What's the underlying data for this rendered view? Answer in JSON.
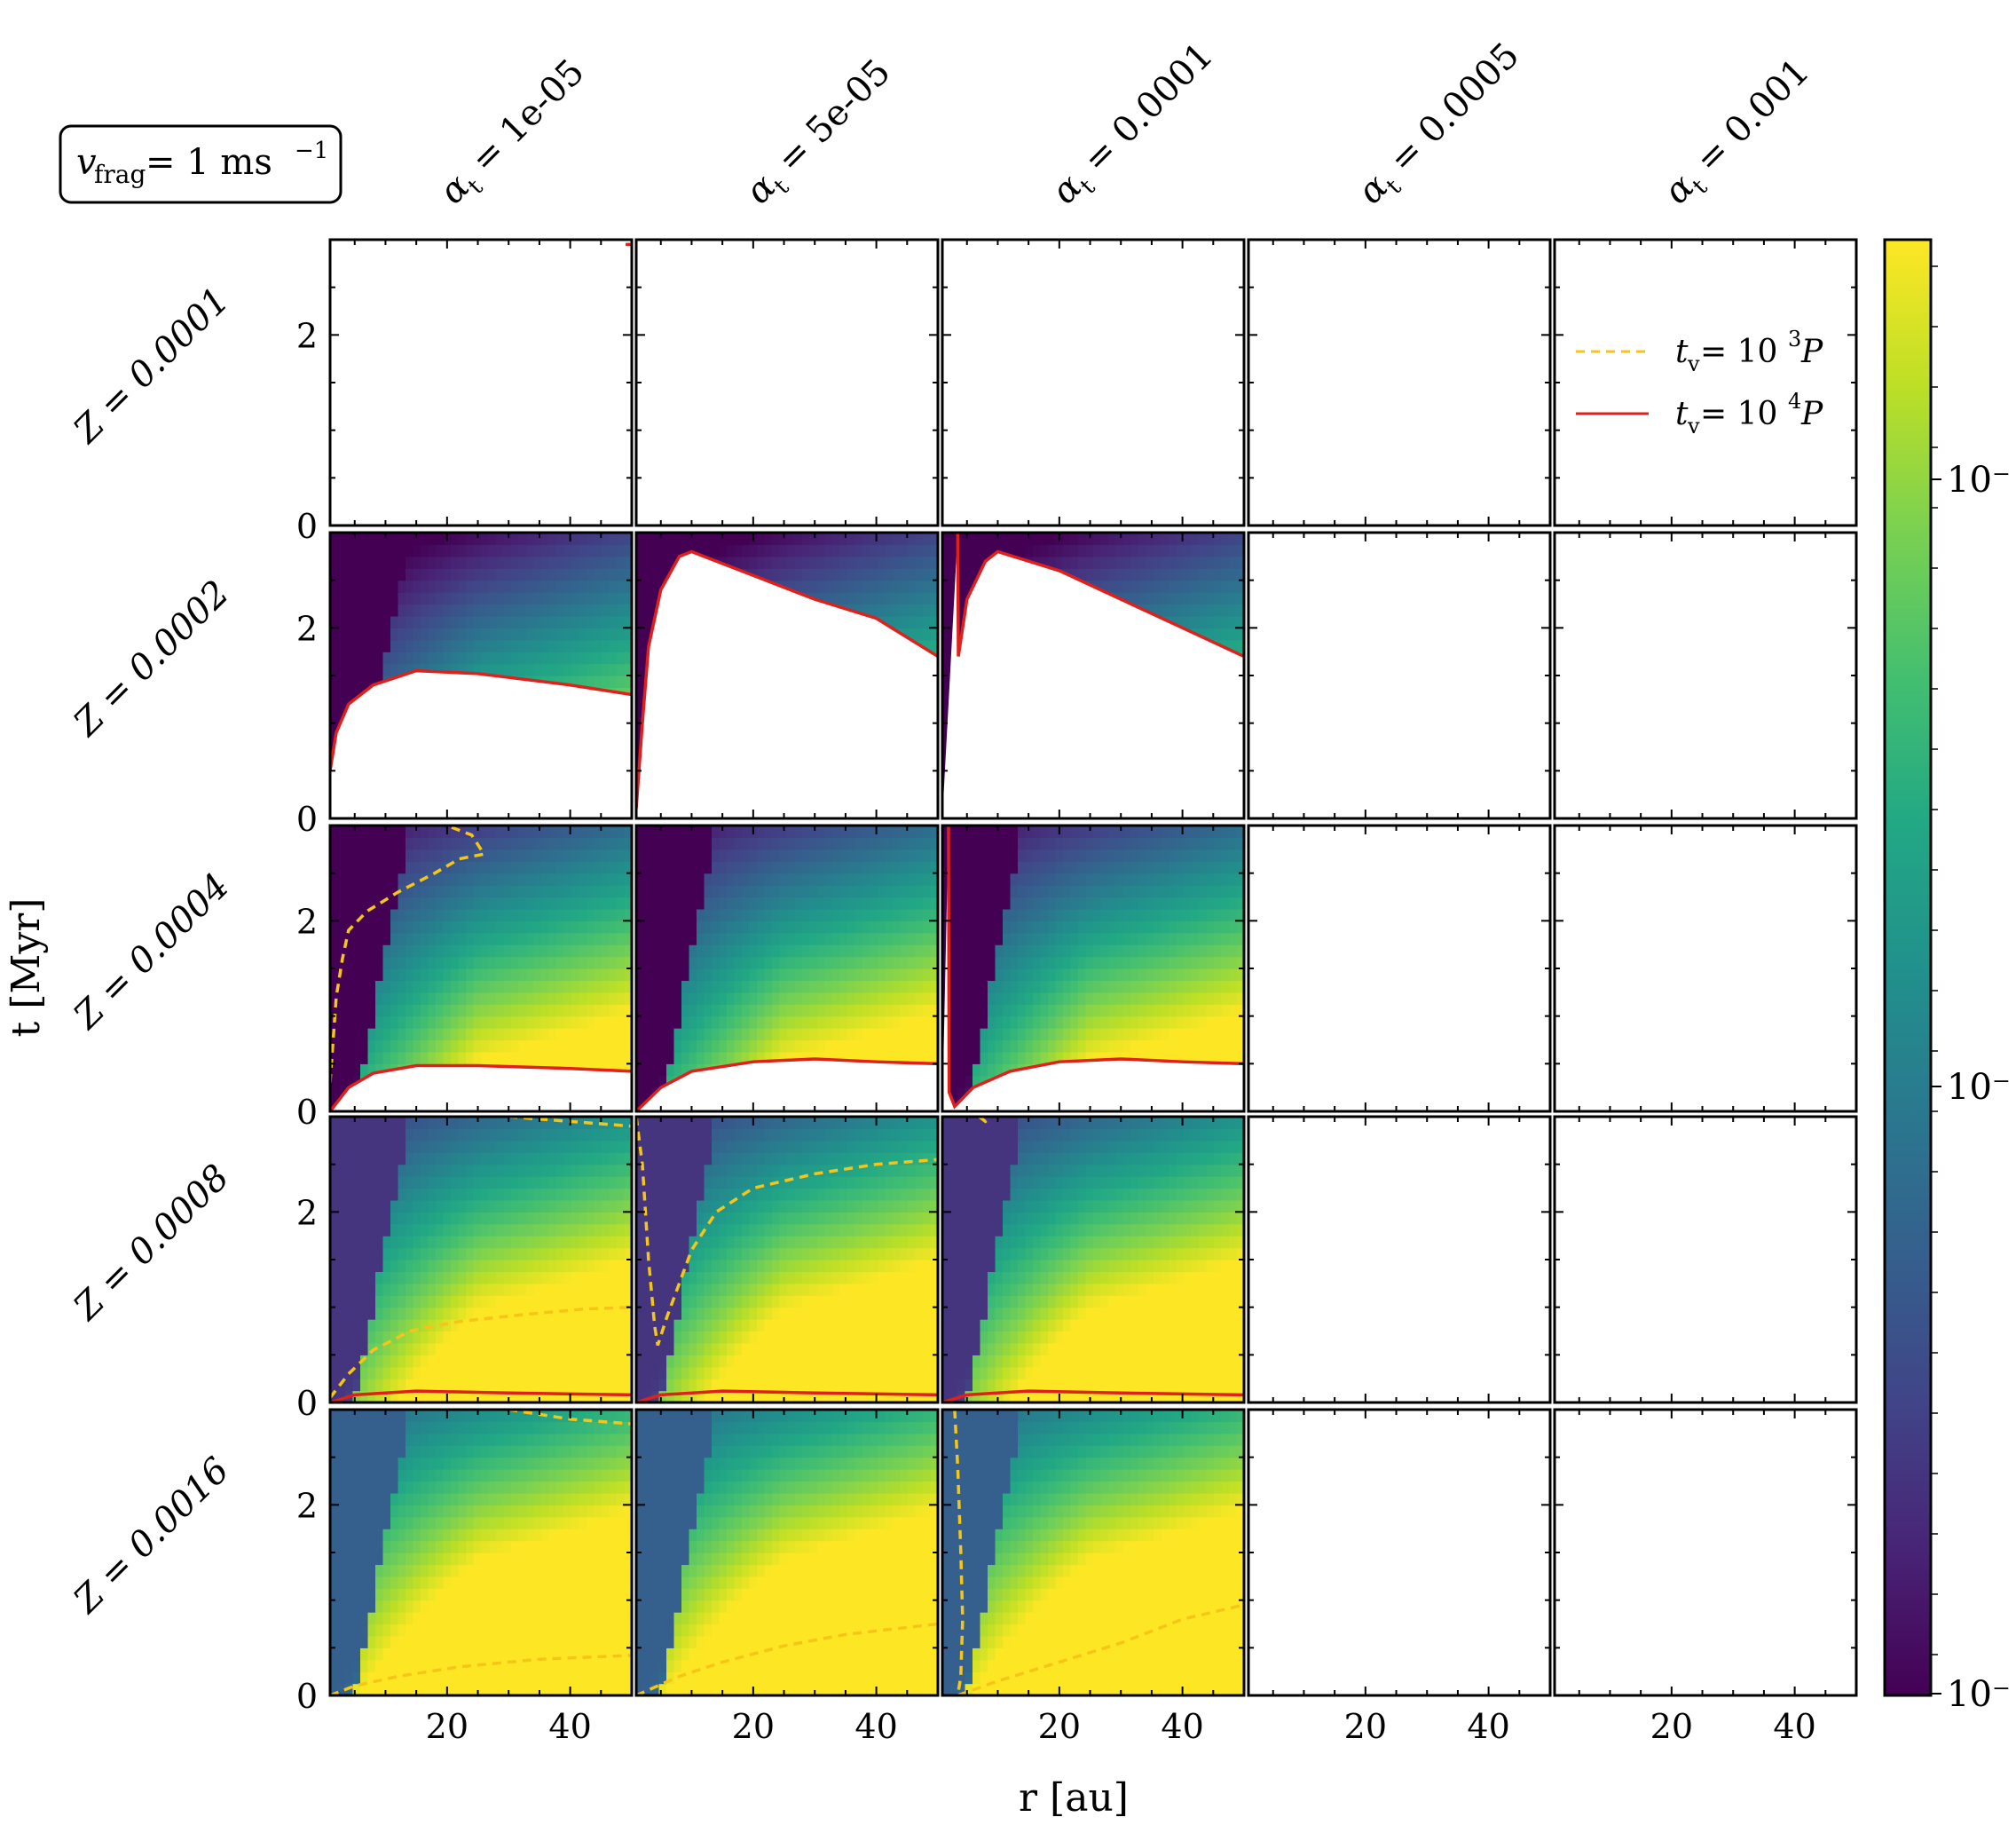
{
  "figure": {
    "badge": {
      "text": "v",
      "sub": "frag",
      "mid": " = 1 ms",
      "sup": "−1"
    },
    "column_labels": [
      {
        "sym": "α",
        "sub": "t",
        "val": " = 1e-05"
      },
      {
        "sym": "α",
        "sub": "t",
        "val": " = 5e-05"
      },
      {
        "sym": "α",
        "sub": "t",
        "val": " = 0.0001"
      },
      {
        "sym": "α",
        "sub": "t",
        "val": " = 0.0005"
      },
      {
        "sym": "α",
        "sub": "t",
        "val": " = 0.001"
      }
    ],
    "row_labels": [
      "Z = 0.0001",
      "Z = 0.0002",
      "Z = 0.0004",
      "Z = 0.0008",
      "Z = 0.0016"
    ],
    "xlabel": "r [au]",
    "ylabel": "t [Myr]",
    "x_ticks": [
      "20",
      "40"
    ],
    "y_ticks": [
      "0",
      "2"
    ],
    "colorbar_ticks": [
      "10⁻",
      "10⁻",
      "10⁻"
    ],
    "legend": [
      {
        "label_t": "t",
        "label_sub": "v",
        "label_rest": " = 10",
        "label_sup": "3",
        "label_end": "P",
        "color": "#f5c518",
        "style": "dashed"
      },
      {
        "label_t": "t",
        "label_sub": "v",
        "label_rest": " = 10",
        "label_sup": "4",
        "label_end": "P",
        "color": "#e0201b",
        "style": "solid"
      }
    ],
    "colors": {
      "yellow_line": "#f5c518",
      "red_line": "#e0201b"
    }
  },
  "chart_data": {
    "type": "heatmap",
    "colormap": "viridis",
    "colorscale": "log",
    "xlabel": "r [au]",
    "ylabel": "t [Myr]",
    "xlim": [
      1,
      50
    ],
    "ylim": [
      0,
      3
    ],
    "panels": [
      {
        "row": 0,
        "col": 0,
        "filled": false,
        "red": [
          [
            49,
            2.95
          ],
          [
            50,
            2.95
          ]
        ],
        "yellow": []
      },
      {
        "row": 0,
        "col": 1,
        "filled": false,
        "red": [],
        "yellow": []
      },
      {
        "row": 0,
        "col": 2,
        "filled": false,
        "red": [],
        "yellow": []
      },
      {
        "row": 0,
        "col": 3,
        "filled": false,
        "red": [],
        "yellow": []
      },
      {
        "row": 0,
        "col": 4,
        "filled": false,
        "red": [],
        "yellow": []
      },
      {
        "row": 1,
        "col": 0,
        "filled": true,
        "mask_below_red": true,
        "red": [
          [
            1,
            0.5
          ],
          [
            2,
            0.9
          ],
          [
            4,
            1.2
          ],
          [
            8,
            1.4
          ],
          [
            15,
            1.55
          ],
          [
            25,
            1.52
          ],
          [
            40,
            1.4
          ],
          [
            50,
            1.3
          ]
        ],
        "yellow": []
      },
      {
        "row": 1,
        "col": 1,
        "filled": true,
        "mask_below_red": true,
        "red": [
          [
            1,
            0.1
          ],
          [
            2,
            1.0
          ],
          [
            3,
            1.8
          ],
          [
            5,
            2.4
          ],
          [
            8,
            2.75
          ],
          [
            10,
            2.8
          ],
          [
            20,
            2.55
          ],
          [
            30,
            2.3
          ],
          [
            40,
            2.1
          ],
          [
            50,
            1.7
          ]
        ],
        "yellow": []
      },
      {
        "row": 1,
        "col": 2,
        "filled": true,
        "mask_below_red": true,
        "red_vertical_x": 3.5,
        "red": [
          [
            3.5,
            3.0
          ],
          [
            3.6,
            1.7
          ],
          [
            5,
            2.3
          ],
          [
            8,
            2.7
          ],
          [
            10,
            2.8
          ],
          [
            20,
            2.6
          ],
          [
            30,
            2.3
          ],
          [
            40,
            2.0
          ],
          [
            50,
            1.7
          ]
        ],
        "yellow": []
      },
      {
        "row": 1,
        "col": 3,
        "filled": false,
        "red": [],
        "yellow": []
      },
      {
        "row": 1,
        "col": 4,
        "filled": false,
        "red": [],
        "yellow": []
      },
      {
        "row": 2,
        "col": 0,
        "filled": true,
        "mask_below_red": true,
        "red": [
          [
            1,
            0.0
          ],
          [
            4,
            0.25
          ],
          [
            8,
            0.4
          ],
          [
            15,
            0.48
          ],
          [
            25,
            0.48
          ],
          [
            40,
            0.45
          ],
          [
            50,
            0.42
          ]
        ],
        "yellow": [
          [
            1,
            0.3
          ],
          [
            2,
            1.2
          ],
          [
            3,
            1.6
          ],
          [
            4,
            1.9
          ],
          [
            7,
            2.1
          ],
          [
            12,
            2.3
          ],
          [
            18,
            2.5
          ],
          [
            22,
            2.65
          ],
          [
            26,
            2.7
          ],
          [
            24,
            2.9
          ],
          [
            20,
            3.0
          ]
        ]
      },
      {
        "row": 2,
        "col": 1,
        "filled": true,
        "mask_below_red": true,
        "red": [
          [
            1,
            0.0
          ],
          [
            5,
            0.25
          ],
          [
            10,
            0.42
          ],
          [
            20,
            0.52
          ],
          [
            30,
            0.55
          ],
          [
            40,
            0.52
          ],
          [
            50,
            0.5
          ]
        ],
        "yellow": []
      },
      {
        "row": 2,
        "col": 2,
        "filled": true,
        "mask_below_red": true,
        "red_vertical_x": 2,
        "red": [
          [
            2,
            3.0
          ],
          [
            2.1,
            0.2
          ],
          [
            3,
            0.05
          ],
          [
            6,
            0.25
          ],
          [
            12,
            0.42
          ],
          [
            20,
            0.52
          ],
          [
            30,
            0.55
          ],
          [
            40,
            0.52
          ],
          [
            50,
            0.5
          ]
        ],
        "yellow": []
      },
      {
        "row": 2,
        "col": 3,
        "filled": false,
        "red": [],
        "yellow": []
      },
      {
        "row": 2,
        "col": 4,
        "filled": false,
        "red": [],
        "yellow": []
      },
      {
        "row": 3,
        "col": 0,
        "filled": true,
        "mask_below_red": false,
        "red": [
          [
            1,
            0.0
          ],
          [
            5,
            0.08
          ],
          [
            15,
            0.12
          ],
          [
            30,
            0.1
          ],
          [
            50,
            0.08
          ]
        ],
        "yellow": [
          [
            1,
            0.05
          ],
          [
            4,
            0.3
          ],
          [
            8,
            0.55
          ],
          [
            14,
            0.75
          ],
          [
            22,
            0.85
          ],
          [
            32,
            0.92
          ],
          [
            42,
            0.98
          ],
          [
            50,
            1.0
          ],
          [
            30,
            3.0
          ],
          [
            40,
            2.95
          ],
          [
            50,
            2.9
          ]
        ]
      },
      {
        "row": 3,
        "col": 1,
        "filled": true,
        "mask_below_red": false,
        "red": [
          [
            1,
            0.0
          ],
          [
            5,
            0.08
          ],
          [
            15,
            0.12
          ],
          [
            30,
            0.1
          ],
          [
            50,
            0.08
          ]
        ],
        "yellow": [
          [
            1,
            3.0
          ],
          [
            2,
            2.5
          ],
          [
            3,
            1.5
          ],
          [
            4,
            0.8
          ],
          [
            4.5,
            0.6
          ],
          [
            6,
            0.9
          ],
          [
            10,
            1.6
          ],
          [
            14,
            2.0
          ],
          [
            20,
            2.25
          ],
          [
            30,
            2.4
          ],
          [
            40,
            2.5
          ],
          [
            50,
            2.55
          ]
        ]
      },
      {
        "row": 3,
        "col": 2,
        "filled": true,
        "mask_below_red": false,
        "red": [
          [
            1,
            0.0
          ],
          [
            5,
            0.08
          ],
          [
            15,
            0.12
          ],
          [
            30,
            0.1
          ],
          [
            50,
            0.08
          ]
        ],
        "yellow": [
          [
            7,
            3.0
          ],
          [
            8,
            2.95
          ],
          [
            9,
            3.0
          ]
        ]
      },
      {
        "row": 3,
        "col": 3,
        "filled": false,
        "red": [],
        "yellow": []
      },
      {
        "row": 3,
        "col": 4,
        "filled": false,
        "red": [],
        "yellow": []
      },
      {
        "row": 4,
        "col": 0,
        "filled": true,
        "mask_below_red": false,
        "red": [],
        "yellow": [
          [
            1,
            0.0
          ],
          [
            5,
            0.1
          ],
          [
            12,
            0.2
          ],
          [
            22,
            0.3
          ],
          [
            35,
            0.38
          ],
          [
            50,
            0.42
          ],
          [
            30,
            3.0
          ],
          [
            40,
            2.9
          ],
          [
            50,
            2.85
          ]
        ]
      },
      {
        "row": 4,
        "col": 1,
        "filled": true,
        "mask_below_red": false,
        "red": [],
        "yellow": [
          [
            1,
            0.0
          ],
          [
            8,
            0.2
          ],
          [
            15,
            0.35
          ],
          [
            25,
            0.52
          ],
          [
            35,
            0.64
          ],
          [
            50,
            0.75
          ]
        ]
      },
      {
        "row": 4,
        "col": 2,
        "filled": true,
        "mask_below_red": false,
        "red": [],
        "yellow": [
          [
            3,
            3.0
          ],
          [
            3.5,
            2.4
          ],
          [
            4,
            1.5
          ],
          [
            4.3,
            0.8
          ],
          [
            4,
            0.2
          ],
          [
            3.5,
            0.0
          ],
          [
            10,
            0.15
          ],
          [
            20,
            0.35
          ],
          [
            30,
            0.55
          ],
          [
            40,
            0.8
          ],
          [
            50,
            0.95
          ]
        ]
      },
      {
        "row": 4,
        "col": 3,
        "filled": false,
        "red": [],
        "yellow": []
      },
      {
        "row": 4,
        "col": 4,
        "filled": false,
        "red": [],
        "yellow": []
      }
    ]
  }
}
